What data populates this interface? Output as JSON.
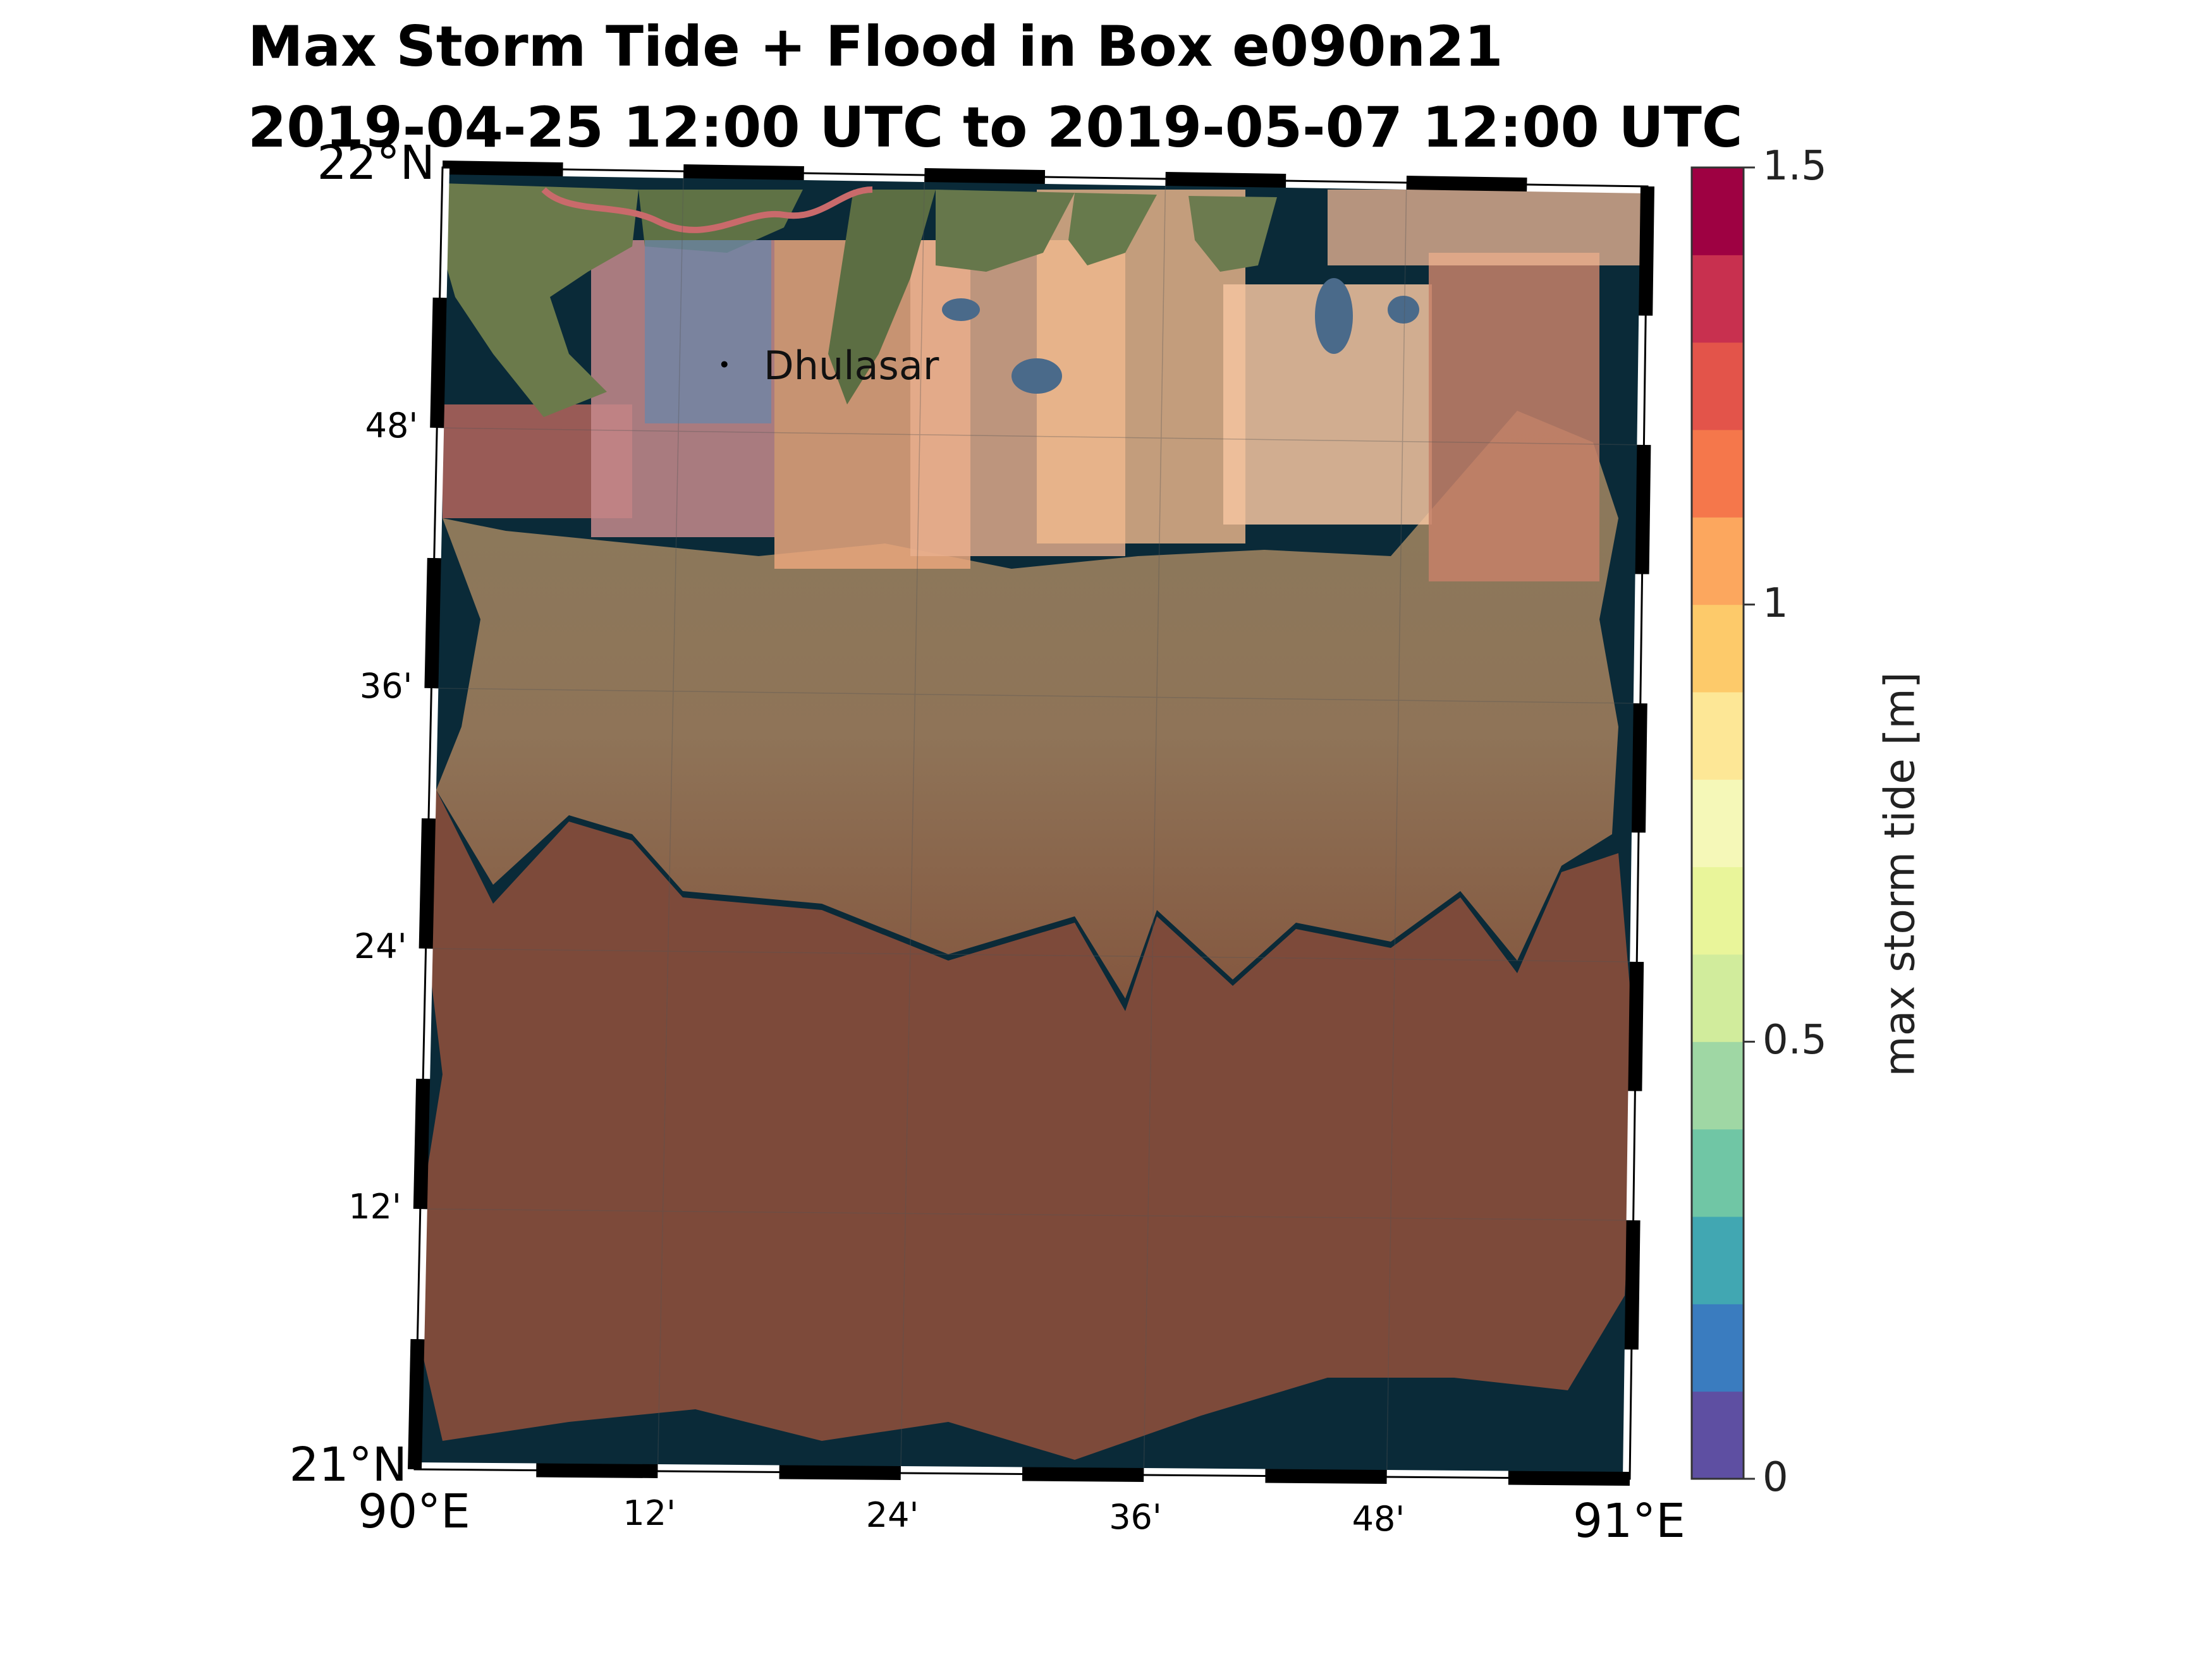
{
  "title": {
    "line1": "Max Storm Tide + Flood in Box e090n21",
    "line2": "2019-04-25 12:00 UTC to 2019-05-07 12:00 UTC"
  },
  "map": {
    "place": {
      "name": "Dhulasar",
      "lat": 21.852,
      "lon": 90.237
    },
    "lat_range": [
      21.0,
      22.0
    ],
    "lon_range": [
      90.0,
      91.0
    ],
    "lat_ticks": [
      {
        "value": 22.0,
        "label": "22°N"
      },
      {
        "value": 21.8,
        "label": "48'"
      },
      {
        "value": 21.6,
        "label": "36'"
      },
      {
        "value": 21.4,
        "label": "24'"
      },
      {
        "value": 21.2,
        "label": "12'"
      },
      {
        "value": 21.0,
        "label": "21°N"
      }
    ],
    "lon_ticks": [
      {
        "value": 90.0,
        "label": "90°E"
      },
      {
        "value": 90.2,
        "label": "12'"
      },
      {
        "value": 90.4,
        "label": "24'"
      },
      {
        "value": 90.6,
        "label": "36'"
      },
      {
        "value": 90.8,
        "label": "48'"
      },
      {
        "value": 91.0,
        "label": "91°E"
      }
    ],
    "colors": {
      "ocean": "#0a2a38",
      "surge_low": "#7d4a38",
      "surge_mid": "#8d7158",
      "land_green": "#5e7447",
      "flood_pink": "#e8947d",
      "flood_peach": "#f3b894"
    }
  },
  "colorbar": {
    "title": "max storm tide [m]",
    "min": 0,
    "max": 1.5,
    "tick_labels": [
      {
        "value": 0,
        "label": "0"
      },
      {
        "value": 0.5,
        "label": "0.5"
      },
      {
        "value": 1,
        "label": "1"
      },
      {
        "value": 1.5,
        "label": "1.5"
      }
    ],
    "colors": [
      "#5e4fa2",
      "#3a7cbf",
      "#41a7b2",
      "#70c6a5",
      "#9fd7a4",
      "#d1ec9c",
      "#e9f59a",
      "#f5f8b8",
      "#fde796",
      "#fdca6a",
      "#fca75e",
      "#f5774b",
      "#e3544a",
      "#c8304f",
      "#9e0142"
    ]
  }
}
